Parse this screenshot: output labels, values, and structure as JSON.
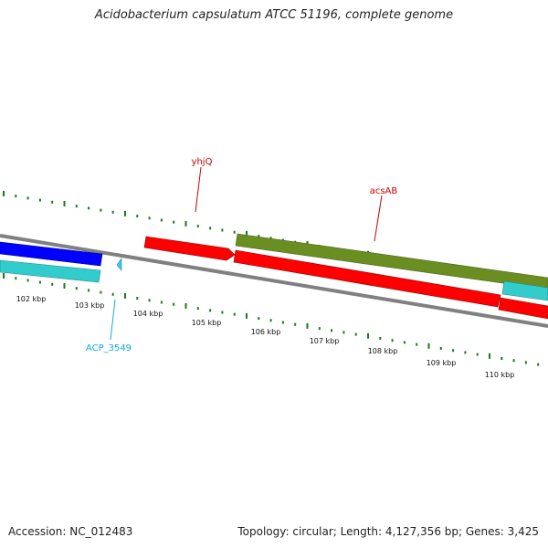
{
  "title": "Acidobacterium capsulatum ATCC 51196, complete genome",
  "footer": {
    "accession": "Accession: NC_012483",
    "stats": "Topology: circular; Length: 4,127,356 bp; Genes: 3,425"
  },
  "colors": {
    "backbone": "#808080",
    "forward_gene": "#ff0000",
    "reverse_gene_blue": "#0000ff",
    "cyan_gene": "#33cccc",
    "olive_gene": "#6b8e23",
    "tick": "#1a7a1a",
    "label_red": "#cc0000",
    "label_cyan": "#11aadd"
  },
  "ruler": {
    "labels": [
      "102 kbp",
      "103 kbp",
      "104 kbp",
      "105 kbp",
      "106 kbp",
      "107 kbp",
      "108 kbp",
      "109 kbp",
      "110 kbp"
    ]
  },
  "gene_labels": [
    {
      "id": "yhjQ",
      "text": "yhjQ"
    },
    {
      "id": "acsAB",
      "text": "acsAB"
    },
    {
      "id": "ACP_3549",
      "text": "ACP_3549"
    }
  ]
}
